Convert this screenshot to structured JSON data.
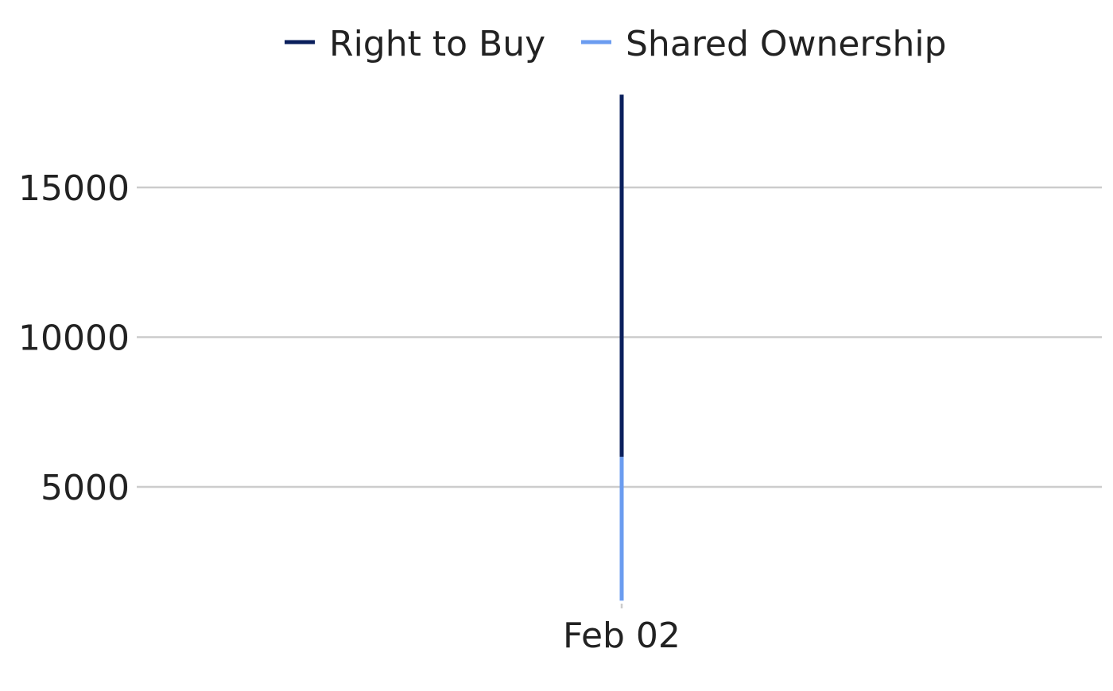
{
  "chart_data": {
    "type": "line",
    "title": "",
    "xlabel": "",
    "ylabel": "",
    "x": [
      "Feb 02"
    ],
    "x_tick_labels": [
      "Feb 02"
    ],
    "y_ticks": [
      5000,
      10000,
      15000
    ],
    "y_tick_labels": [
      "5000",
      "10000",
      "15000"
    ],
    "ylim": [
      600,
      18200
    ],
    "grid": {
      "y": true,
      "x": false
    },
    "legend": {
      "placement": "top-center",
      "entries": [
        "Right to Buy",
        "Shared Ownership"
      ]
    },
    "series": [
      {
        "name": "Right to Buy",
        "color": "#0a1f5c",
        "segment": {
          "x": "Feb 02",
          "y_from": 6000,
          "y_to": 18100
        }
      },
      {
        "name": "Shared Ownership",
        "color": "#6b9cf0",
        "segment": {
          "x": "Feb 02",
          "y_from": 1200,
          "y_to": 6000
        }
      }
    ]
  }
}
